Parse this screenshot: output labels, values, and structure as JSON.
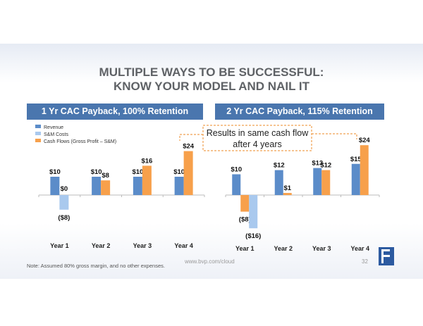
{
  "title_line1": "MULTIPLE WAYS TO BE SUCCESSFUL:",
  "title_line2": "KNOW YOUR MODEL AND NAIL IT",
  "callout": [
    "Results in same cash flow",
    "after 4 years"
  ],
  "footer": {
    "note": "Note: Assumed  80% gross margin, and no other expenses.",
    "url": "www.bvp.com/cloud",
    "page": "32"
  },
  "colors": {
    "revenue": "#5b8cc9",
    "sm": "#a9c9ee",
    "cash": "#f7a04b",
    "header": "#4a76ae"
  },
  "chart_data": [
    {
      "type": "bar",
      "title": "1 Yr CAC Payback, 100% Retention",
      "categories": [
        "Year 1",
        "Year 2",
        "Year 3",
        "Year 4"
      ],
      "legend": [
        "Revenue",
        "S&M Costs",
        "Cash Flows (Gross Profit – S&M)"
      ],
      "legend_position": "top-left",
      "series": [
        {
          "name": "Revenue",
          "values": [
            10,
            10,
            10,
            10
          ],
          "labels": [
            "$10",
            "$10",
            "$10",
            "$10"
          ]
        },
        {
          "name": "S&M Costs",
          "values": [
            -8,
            null,
            null,
            null
          ],
          "labels": [
            "($8)",
            "",
            "",
            ""
          ]
        },
        {
          "name": "Cash Flows",
          "values": [
            0,
            8,
            16,
            24
          ],
          "labels": [
            "$0",
            "$8",
            "$16",
            "$24"
          ]
        }
      ]
    },
    {
      "type": "bar",
      "title": "2 Yr CAC Payback, 115% Retention",
      "categories": [
        "Year 1",
        "Year 2",
        "Year 3",
        "Year 4"
      ],
      "series": [
        {
          "name": "Revenue",
          "values": [
            10,
            12,
            13,
            15
          ],
          "labels": [
            "$10",
            "$12",
            "$13",
            "$15"
          ]
        },
        {
          "name": "Cash Flows",
          "values": [
            -8,
            1,
            12,
            24
          ],
          "labels": [
            "($8)",
            "$1",
            "$12",
            "$24"
          ]
        },
        {
          "name": "S&M Costs",
          "values": [
            -16,
            null,
            null,
            null
          ],
          "labels": [
            "($16)",
            "",
            "",
            ""
          ]
        }
      ]
    }
  ]
}
